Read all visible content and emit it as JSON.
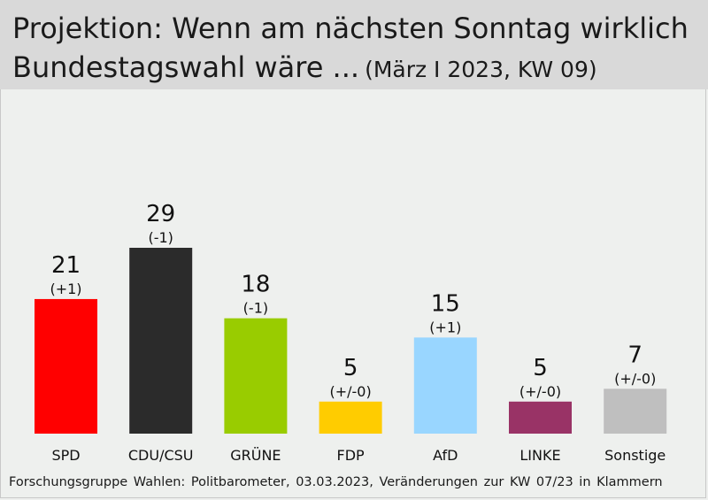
{
  "title_line1": "Projektion: Wenn am nächsten Sonntag wirklich",
  "title_line2": "Bundestagswahl wäre ...",
  "subtitle": "(März I 2023, KW 09)",
  "footer": "Forschungsgruppe Wahlen: Politbarometer, 03.03.2023, Veränderungen zur KW 07/23 in Klammern",
  "chart_data": {
    "type": "bar",
    "title": "Projektion: Wenn am nächsten Sonntag wirklich Bundestagswahl wäre ...",
    "subtitle": "(März I 2023, KW 09)",
    "categories": [
      "SPD",
      "CDU/CSU",
      "GRÜNE",
      "FDP",
      "AfD",
      "LINKE",
      "Sonstige"
    ],
    "values": [
      21,
      29,
      18,
      5,
      15,
      5,
      7
    ],
    "changes": [
      "(+1)",
      "(-1)",
      "(-1)",
      "(+/-0)",
      "(+1)",
      "(+/-0)",
      "(+/-0)"
    ],
    "colors": [
      "#ff0000",
      "#2b2b2b",
      "#99cc00",
      "#ffcc00",
      "#99d6ff",
      "#993366",
      "#bfbfbf"
    ],
    "xlabel": "",
    "ylabel": "",
    "ylim": [
      0,
      29
    ],
    "grid": false,
    "legend": "none"
  }
}
